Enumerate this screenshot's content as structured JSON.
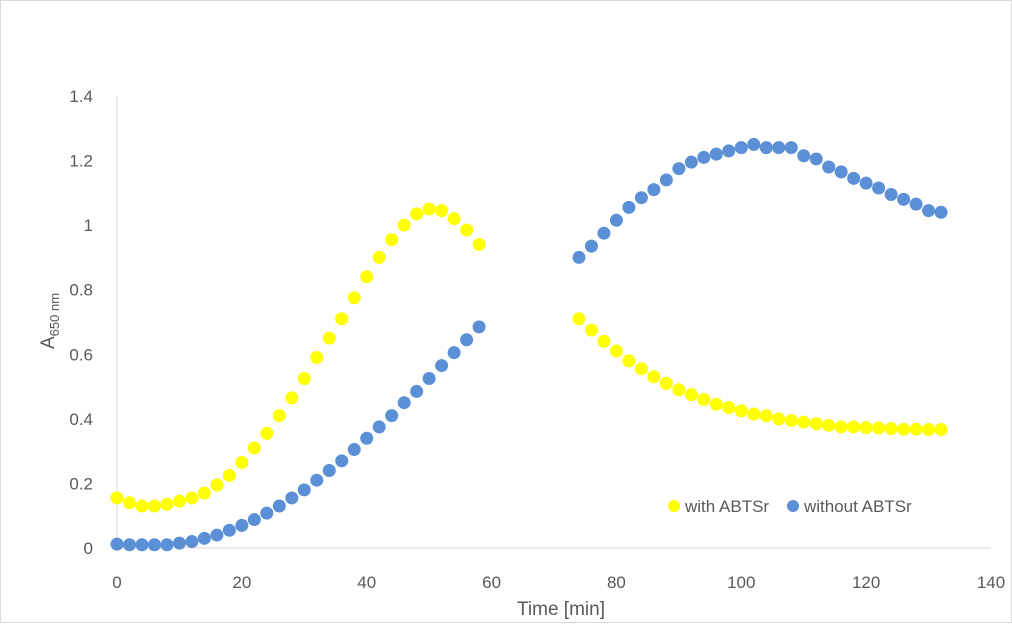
{
  "chart_data": {
    "type": "scatter",
    "title": "",
    "xlabel": "Time [min]",
    "ylabel": "A",
    "ylabel_sub": "650 nm",
    "xlim": [
      0,
      140
    ],
    "ylim": [
      0,
      1.4
    ],
    "x_ticks": [
      "0",
      "20",
      "40",
      "60",
      "80",
      "100",
      "120",
      "140"
    ],
    "y_ticks": [
      "0",
      "0.2",
      "0.4",
      "0.6",
      "0.8",
      "1",
      "1.2",
      "1.4"
    ],
    "grid": false,
    "legend_position": "bottom-right",
    "series": [
      {
        "name": "with ABTSr",
        "color": "#ffff00",
        "x": [
          0,
          2,
          4,
          6,
          8,
          10,
          12,
          14,
          16,
          18,
          20,
          22,
          24,
          26,
          28,
          30,
          32,
          34,
          36,
          38,
          40,
          42,
          44,
          46,
          48,
          50,
          52,
          54,
          56,
          58,
          74,
          76,
          78,
          80,
          82,
          84,
          86,
          88,
          90,
          92,
          94,
          96,
          98,
          100,
          102,
          104,
          106,
          108,
          110,
          112,
          114,
          116,
          118,
          120,
          122,
          124,
          126,
          128,
          130,
          132
        ],
        "y": [
          0.155,
          0.14,
          0.13,
          0.13,
          0.135,
          0.145,
          0.155,
          0.17,
          0.195,
          0.225,
          0.265,
          0.31,
          0.355,
          0.41,
          0.465,
          0.525,
          0.59,
          0.65,
          0.71,
          0.775,
          0.84,
          0.9,
          0.955,
          1.0,
          1.035,
          1.05,
          1.045,
          1.02,
          0.985,
          0.94,
          0.71,
          0.675,
          0.64,
          0.61,
          0.58,
          0.555,
          0.53,
          0.51,
          0.49,
          0.475,
          0.46,
          0.445,
          0.435,
          0.425,
          0.415,
          0.41,
          0.4,
          0.395,
          0.39,
          0.385,
          0.38,
          0.375,
          0.375,
          0.373,
          0.372,
          0.37,
          0.368,
          0.368,
          0.367,
          0.367
        ]
      },
      {
        "name": "without ABTSr",
        "color": "#5b8fd6",
        "x": [
          0,
          2,
          4,
          6,
          8,
          10,
          12,
          14,
          16,
          18,
          20,
          22,
          24,
          26,
          28,
          30,
          32,
          34,
          36,
          38,
          40,
          42,
          44,
          46,
          48,
          50,
          52,
          54,
          56,
          58,
          74,
          76,
          78,
          80,
          82,
          84,
          86,
          88,
          90,
          92,
          94,
          96,
          98,
          100,
          102,
          104,
          106,
          108,
          110,
          112,
          114,
          116,
          118,
          120,
          122,
          124,
          126,
          128,
          130,
          132
        ],
        "y": [
          0.012,
          0.01,
          0.01,
          0.01,
          0.01,
          0.015,
          0.02,
          0.03,
          0.04,
          0.055,
          0.07,
          0.088,
          0.108,
          0.13,
          0.155,
          0.18,
          0.21,
          0.24,
          0.27,
          0.305,
          0.34,
          0.375,
          0.41,
          0.45,
          0.485,
          0.525,
          0.565,
          0.605,
          0.645,
          0.685,
          0.9,
          0.935,
          0.975,
          1.015,
          1.055,
          1.085,
          1.11,
          1.14,
          1.175,
          1.195,
          1.21,
          1.22,
          1.23,
          1.24,
          1.25,
          1.24,
          1.24,
          1.24,
          1.215,
          1.205,
          1.18,
          1.165,
          1.145,
          1.13,
          1.115,
          1.095,
          1.08,
          1.065,
          1.045,
          1.04
        ]
      }
    ]
  }
}
